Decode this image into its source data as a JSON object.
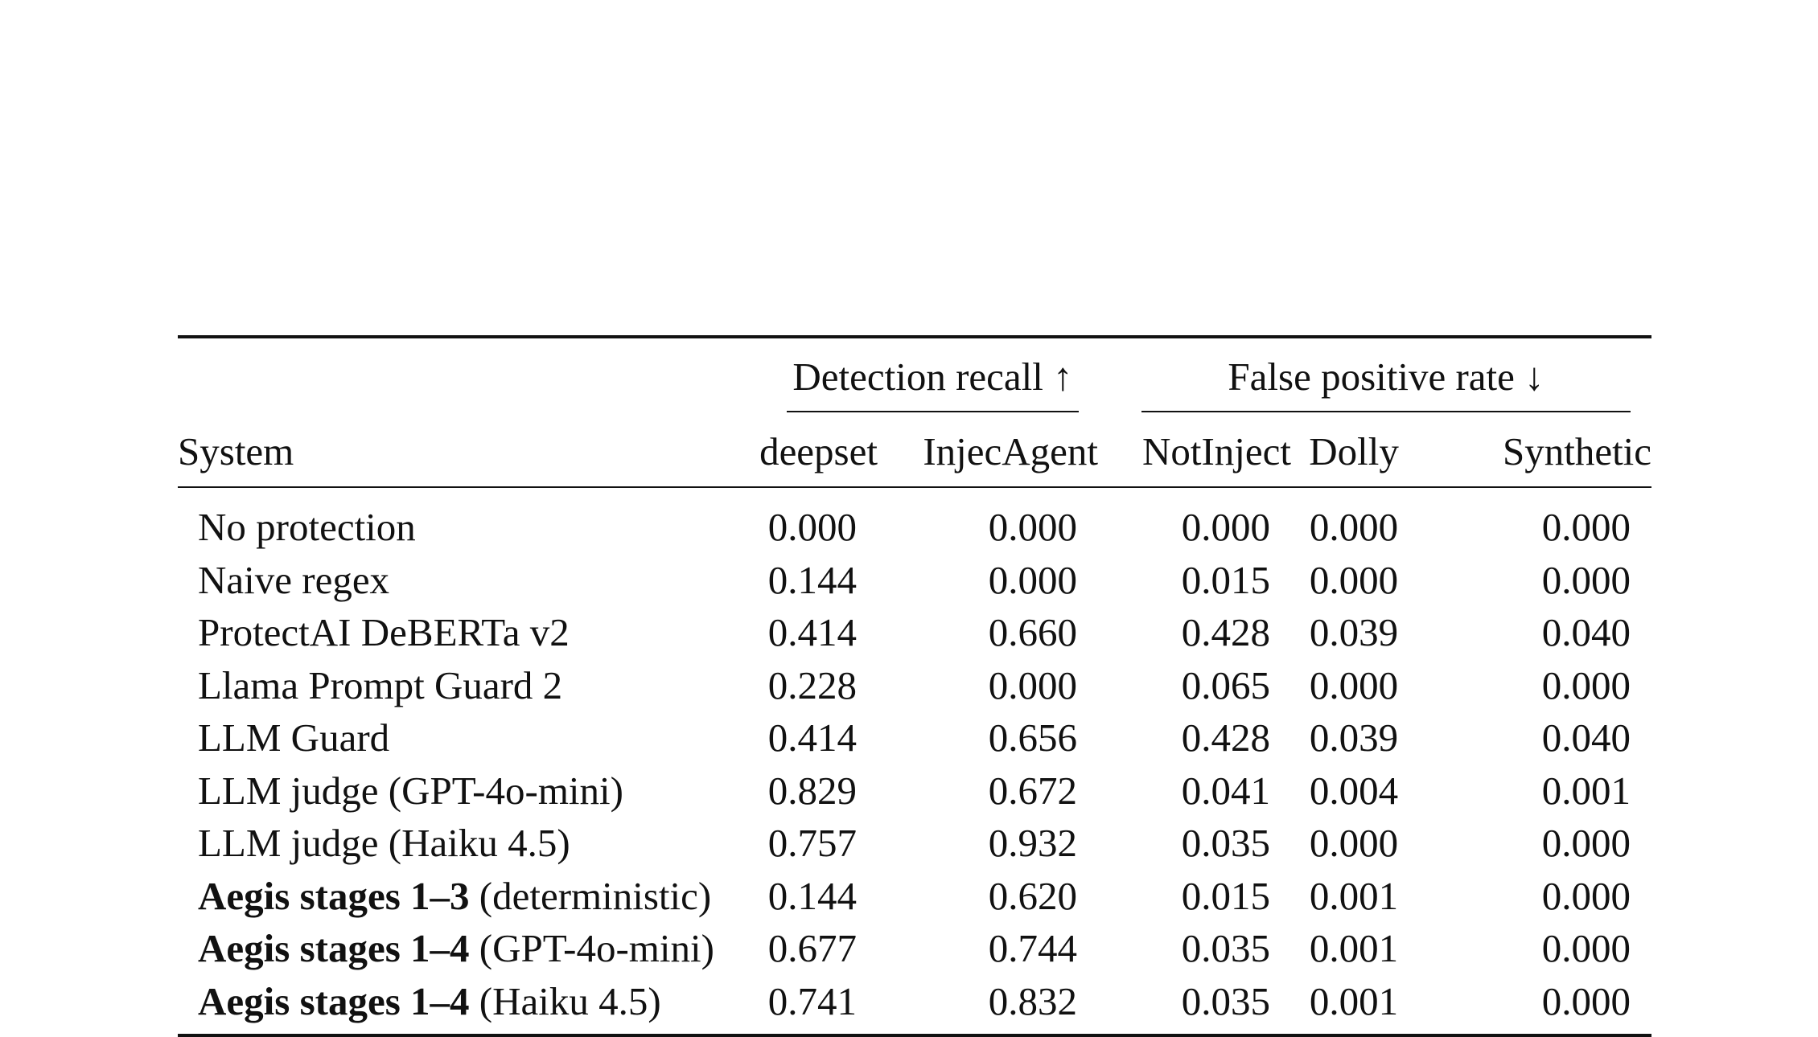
{
  "table": {
    "group_headers": {
      "recall": "Detection recall ↑",
      "fpr": "False positive rate ↓"
    },
    "columns": {
      "system": "System",
      "deepset": "deepset",
      "injecagent": "InjecAgent",
      "notinject": "NotInject",
      "dolly": "Dolly",
      "synthetic": "Synthetic"
    },
    "rows": [
      {
        "name_bold": "",
        "name": "No protection",
        "deepset": "0.000",
        "injecagent": "0.000",
        "notinject": "0.000",
        "dolly": "0.000",
        "synthetic": "0.000"
      },
      {
        "name_bold": "",
        "name": "Naive regex",
        "deepset": "0.144",
        "injecagent": "0.000",
        "notinject": "0.015",
        "dolly": "0.000",
        "synthetic": "0.000"
      },
      {
        "name_bold": "",
        "name": "ProtectAI DeBERTa v2",
        "deepset": "0.414",
        "injecagent": "0.660",
        "notinject": "0.428",
        "dolly": "0.039",
        "synthetic": "0.040"
      },
      {
        "name_bold": "",
        "name": "Llama Prompt Guard 2",
        "deepset": "0.228",
        "injecagent": "0.000",
        "notinject": "0.065",
        "dolly": "0.000",
        "synthetic": "0.000"
      },
      {
        "name_bold": "",
        "name": "LLM Guard",
        "deepset": "0.414",
        "injecagent": "0.656",
        "notinject": "0.428",
        "dolly": "0.039",
        "synthetic": "0.040"
      },
      {
        "name_bold": "",
        "name": "LLM judge (GPT-4o-mini)",
        "deepset": "0.829",
        "injecagent": "0.672",
        "notinject": "0.041",
        "dolly": "0.004",
        "synthetic": "0.001"
      },
      {
        "name_bold": "",
        "name": "LLM judge (Haiku 4.5)",
        "deepset": "0.757",
        "injecagent": "0.932",
        "notinject": "0.035",
        "dolly": "0.000",
        "synthetic": "0.000"
      },
      {
        "name_bold": "Aegis stages 1–3",
        "name": " (deterministic)",
        "deepset": "0.144",
        "injecagent": "0.620",
        "notinject": "0.015",
        "dolly": "0.001",
        "synthetic": "0.000"
      },
      {
        "name_bold": "Aegis stages 1–4",
        "name": " (GPT-4o-mini)",
        "deepset": "0.677",
        "injecagent": "0.744",
        "notinject": "0.035",
        "dolly": "0.001",
        "synthetic": "0.000"
      },
      {
        "name_bold": "Aegis stages 1–4",
        "name": " (Haiku 4.5)",
        "deepset": "0.741",
        "injecagent": "0.832",
        "notinject": "0.035",
        "dolly": "0.001",
        "synthetic": "0.000"
      }
    ]
  }
}
